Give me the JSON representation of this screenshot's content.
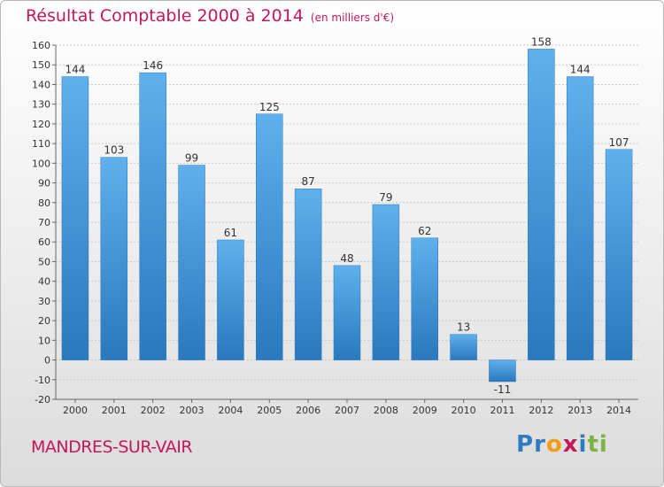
{
  "title": "Résultat Comptable 2000 à 2014",
  "subtitle": "(en milliers d'€)",
  "location": "MANDRES-SUR-VAIR",
  "logo": {
    "letters": [
      "P",
      "r",
      "o",
      "x",
      "i",
      "t",
      "i"
    ],
    "colors": [
      "#2e7bbf",
      "#2e7bbf",
      "#f39c12",
      "#c2185b",
      "#2e7bbf",
      "#7cb342",
      "#7cb342"
    ]
  },
  "chart_data": {
    "type": "bar",
    "categories": [
      "2000",
      "2001",
      "2002",
      "2003",
      "2004",
      "2005",
      "2006",
      "2007",
      "2008",
      "2009",
      "2010",
      "2011",
      "2012",
      "2013",
      "2014"
    ],
    "values": [
      144,
      103,
      146,
      99,
      61,
      125,
      87,
      48,
      79,
      62,
      13,
      -11,
      158,
      144,
      107
    ],
    "ylim": [
      -20,
      160
    ],
    "yticks": [
      -20,
      -10,
      0,
      10,
      20,
      30,
      40,
      50,
      60,
      70,
      80,
      90,
      100,
      110,
      120,
      130,
      140,
      150,
      160
    ],
    "grid": true,
    "bar_color": "#3a8fd6"
  }
}
